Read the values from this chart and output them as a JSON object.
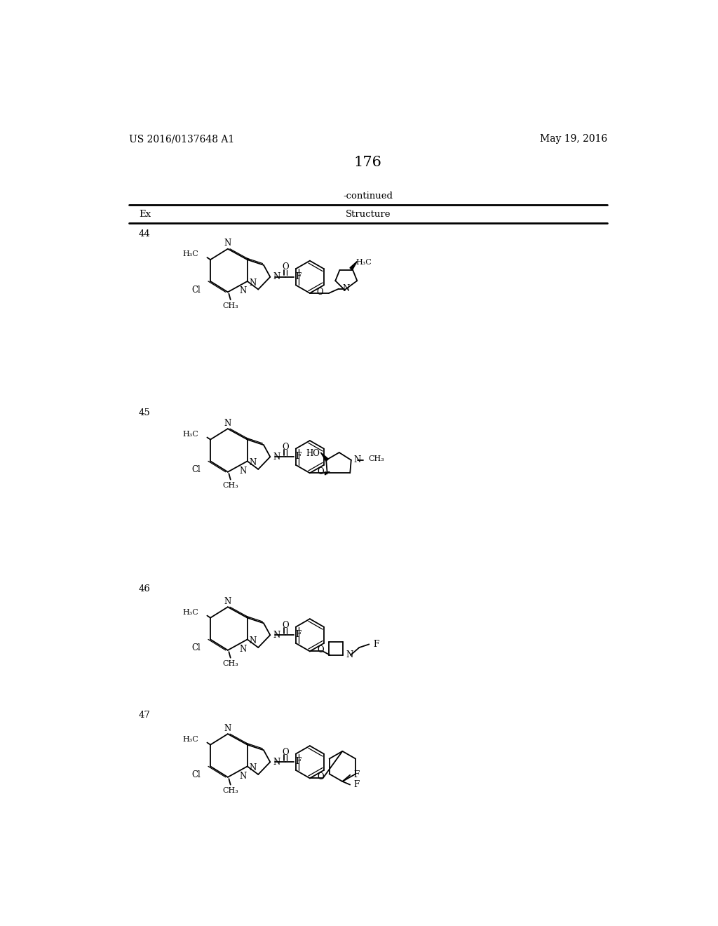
{
  "page_header_left": "US 2016/0137648 A1",
  "page_header_right": "May 19, 2016",
  "page_number": "176",
  "table_header": "-continued",
  "col1_header": "Ex",
  "col2_header": "Structure",
  "examples": [
    "44",
    "45",
    "46",
    "47"
  ],
  "background_color": "#ffffff",
  "text_color": "#000000",
  "font_size_header": 10,
  "font_size_body": 9.5,
  "font_size_page_num": 15
}
